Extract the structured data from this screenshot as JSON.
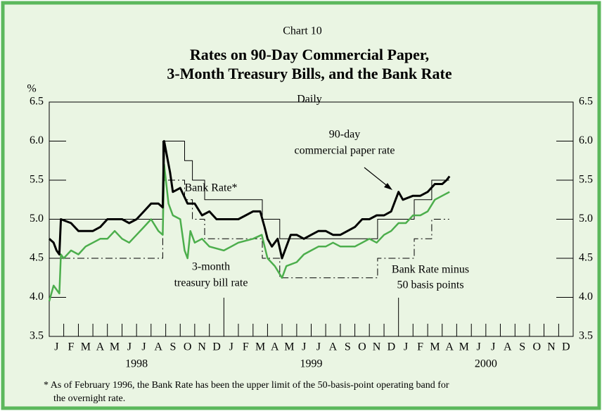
{
  "chart_data": {
    "type": "line",
    "chart_label": "Chart 10",
    "title": [
      "Rates on 90-Day Commercial Paper,",
      "3-Month Treasury Bills, and the Bank Rate"
    ],
    "subtitle": "Daily",
    "ylabel": "%",
    "ylim": [
      3.5,
      6.5
    ],
    "yticks": [
      3.5,
      {
        "value": 4,
        "label": "4.0"
      },
      4.5,
      {
        "value": 5,
        "label": "5.0"
      },
      5.5,
      {
        "value": 6,
        "label": "6.0"
      },
      6.5
    ],
    "xlim": [
      1998,
      2001
    ],
    "xticks": [
      {
        "value": 1998,
        "label": "J"
      },
      {
        "value": 1998.083,
        "label": "F"
      },
      {
        "value": 1998.167,
        "label": "M"
      },
      {
        "value": 1998.25,
        "label": "A"
      },
      {
        "value": 1998.333,
        "label": "M"
      },
      {
        "value": 1998.417,
        "label": "J"
      },
      {
        "value": 1998.5,
        "label": "J"
      },
      {
        "value": 1998.583,
        "label": "A"
      },
      {
        "value": 1998.667,
        "label": "S"
      },
      {
        "value": 1998.75,
        "label": "O"
      },
      {
        "value": 1998.833,
        "label": "N"
      },
      {
        "value": 1998.917,
        "label": "D"
      },
      {
        "value": 1999,
        "label": "J"
      },
      {
        "value": 1999.083,
        "label": "F"
      },
      {
        "value": 1999.167,
        "label": "M"
      },
      {
        "value": 1999.25,
        "label": "A"
      },
      {
        "value": 1999.333,
        "label": "M"
      },
      {
        "value": 1999.417,
        "label": "J"
      },
      {
        "value": 1999.5,
        "label": "J"
      },
      {
        "value": 1999.583,
        "label": "A"
      },
      {
        "value": 1999.667,
        "label": "S"
      },
      {
        "value": 1999.75,
        "label": "O"
      },
      {
        "value": 1999.833,
        "label": "N"
      },
      {
        "value": 1999.917,
        "label": "D"
      },
      {
        "value": 2000,
        "label": "J"
      },
      {
        "value": 2000.083,
        "label": "F"
      },
      {
        "value": 2000.167,
        "label": "M"
      },
      {
        "value": 2000.25,
        "label": "A"
      },
      {
        "value": 2000.333,
        "label": "M"
      },
      {
        "value": 2000.417,
        "label": "J"
      },
      {
        "value": 2000.5,
        "label": "J"
      },
      {
        "value": 2000.583,
        "label": "A"
      },
      {
        "value": 2000.667,
        "label": "S"
      },
      {
        "value": 2000.75,
        "label": "O"
      },
      {
        "value": 2000.833,
        "label": "N"
      },
      {
        "value": 2000.917,
        "label": "D"
      }
    ],
    "year_labels": [
      {
        "value": 1998.5,
        "label": "1998"
      },
      {
        "value": 1999.5,
        "label": "1999"
      },
      {
        "value": 2000.5,
        "label": "2000"
      }
    ],
    "series": [
      {
        "color": "#000000",
        "linestyle": "solid",
        "linewidth": 1,
        "drawstyle": "steps-post",
        "x": [
          1998,
          1998.65,
          1998.775,
          1998.82,
          1998.89,
          1999.22,
          1999.32,
          1999.88,
          2000.09,
          2000.19,
          2000.29
        ],
        "values": [
          5.0,
          6.0,
          5.75,
          5.5,
          5.25,
          5.0,
          4.75,
          5.0,
          5.25,
          5.5,
          5.5
        ]
      },
      {
        "color": "#000000",
        "linestyle": "dashdot",
        "linewidth": 1,
        "drawstyle": "steps-post",
        "x": [
          1998,
          1998.65,
          1998.775,
          1998.82,
          1998.89,
          1999.22,
          1999.32,
          1999.88,
          2000.09,
          2000.19,
          2000.29
        ],
        "values": [
          4.5,
          5.5,
          5.25,
          5.0,
          4.75,
          4.5,
          4.25,
          4.5,
          4.75,
          5.0,
          5.0
        ]
      },
      {
        "color": "#4cae4c",
        "linestyle": "solid",
        "linewidth": 2.5,
        "drawstyle": "default",
        "x": [
          1998,
          1998.025,
          1998.058,
          1998.067,
          1998.083,
          1998.125,
          1998.167,
          1998.208,
          1998.25,
          1998.292,
          1998.333,
          1998.375,
          1998.417,
          1998.458,
          1998.5,
          1998.542,
          1998.583,
          1998.625,
          1998.65,
          1998.658,
          1998.683,
          1998.708,
          1998.75,
          1998.775,
          1998.792,
          1998.808,
          1998.833,
          1998.875,
          1998.917,
          1999,
          1999.042,
          1999.083,
          1999.167,
          1999.217,
          1999.25,
          1999.292,
          1999.333,
          1999.358,
          1999.417,
          1999.458,
          1999.5,
          1999.542,
          1999.583,
          1999.625,
          1999.667,
          1999.75,
          1999.792,
          1999.833,
          1999.875,
          1999.917,
          1999.958,
          2000,
          2000.042,
          2000.083,
          2000.125,
          2000.167,
          2000.208,
          2000.25,
          2000.292
        ],
        "values": [
          3.95,
          4.15,
          4.05,
          4.55,
          4.5,
          4.6,
          4.55,
          4.65,
          4.7,
          4.75,
          4.75,
          4.85,
          4.75,
          4.7,
          4.8,
          4.9,
          5.0,
          4.85,
          4.8,
          5.7,
          5.2,
          5.05,
          5.0,
          4.6,
          4.5,
          4.85,
          4.7,
          4.75,
          4.65,
          4.6,
          4.65,
          4.7,
          4.75,
          4.8,
          4.5,
          4.4,
          4.25,
          4.4,
          4.45,
          4.55,
          4.6,
          4.65,
          4.65,
          4.7,
          4.65,
          4.65,
          4.7,
          4.75,
          4.7,
          4.8,
          4.85,
          4.95,
          4.95,
          5.05,
          5.05,
          5.1,
          5.25,
          5.3,
          5.35
        ]
      },
      {
        "color": "#000000",
        "linestyle": "solid",
        "linewidth": 3,
        "drawstyle": "default",
        "x": [
          1998,
          1998.025,
          1998.042,
          1998.058,
          1998.067,
          1998.125,
          1998.167,
          1998.25,
          1998.292,
          1998.333,
          1998.417,
          1998.458,
          1998.5,
          1998.542,
          1998.583,
          1998.625,
          1998.65,
          1998.658,
          1998.675,
          1998.692,
          1998.708,
          1998.75,
          1998.792,
          1998.833,
          1998.875,
          1998.917,
          1998.958,
          1999,
          1999.083,
          1999.125,
          1999.167,
          1999.208,
          1999.233,
          1999.25,
          1999.275,
          1999.308,
          1999.333,
          1999.358,
          1999.383,
          1999.417,
          1999.458,
          1999.5,
          1999.542,
          1999.583,
          1999.625,
          1999.667,
          1999.708,
          1999.75,
          1999.792,
          1999.833,
          1999.875,
          1999.917,
          1999.958,
          2000,
          2000.025,
          2000.083,
          2000.125,
          2000.167,
          2000.208,
          2000.25,
          2000.275,
          2000.292
        ],
        "values": [
          4.75,
          4.7,
          4.6,
          4.55,
          5.0,
          4.95,
          4.85,
          4.85,
          4.9,
          5.0,
          5.0,
          4.95,
          5.0,
          5.1,
          5.2,
          5.2,
          5.15,
          6.0,
          5.8,
          5.6,
          5.35,
          5.4,
          5.2,
          5.2,
          5.05,
          5.1,
          5.0,
          5.0,
          5.0,
          5.05,
          5.1,
          5.1,
          4.9,
          4.75,
          4.65,
          4.75,
          4.5,
          4.65,
          4.8,
          4.8,
          4.75,
          4.8,
          4.85,
          4.85,
          4.8,
          4.8,
          4.85,
          4.9,
          5.0,
          5.0,
          5.05,
          5.05,
          5.1,
          5.35,
          5.25,
          5.3,
          5.3,
          5.35,
          5.45,
          5.45,
          5.5,
          5.55
        ]
      }
    ],
    "annotations": [
      "Bank Rate*",
      "90-day",
      "commercial paper rate",
      "3-month",
      "treasury bill rate",
      "Bank Rate minus",
      "50 basis points"
    ],
    "footnote": [
      "* As of February 1996, the Bank Rate has been the upper limit of the 50-basis-point operating band for",
      "the overnight rate."
    ]
  }
}
